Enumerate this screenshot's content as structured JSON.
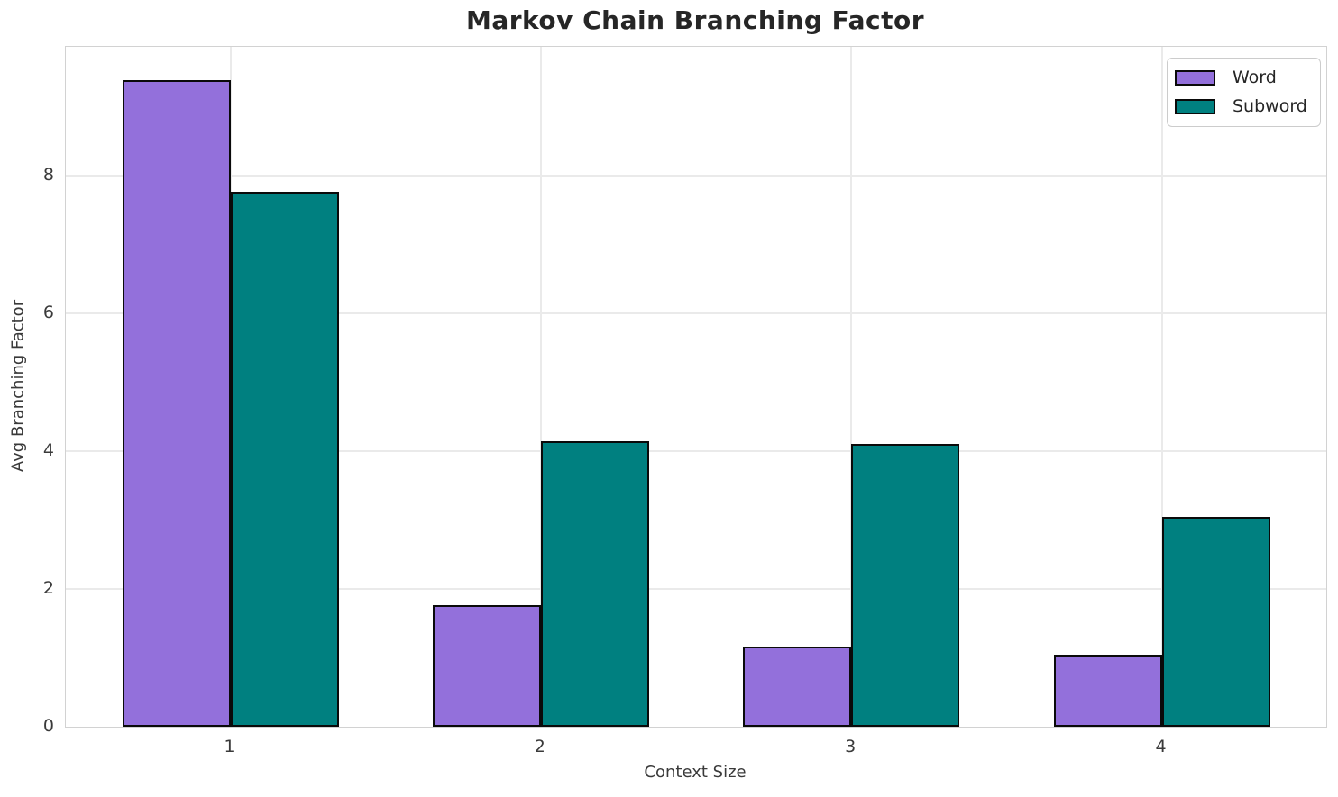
{
  "chart_data": {
    "type": "bar",
    "title": "Markov Chain Branching Factor",
    "xlabel": "Context Size",
    "ylabel": "Avg Branching Factor",
    "categories": [
      "1",
      "2",
      "3",
      "4"
    ],
    "series": [
      {
        "name": "Word",
        "color": "#9370db",
        "values": [
          9.38,
          1.76,
          1.16,
          1.04
        ]
      },
      {
        "name": "Subword",
        "color": "#008080",
        "values": [
          7.77,
          4.14,
          4.11,
          3.05
        ]
      }
    ],
    "ylim": [
      0,
      9.87
    ],
    "yticks": [
      0,
      2,
      4,
      6,
      8
    ],
    "grid": "horizontal and vertical light gray gridlines",
    "legend_position": "upper right",
    "bar_edge_color": "#0a0a0a"
  },
  "colors": {
    "background": "#ffffff",
    "grid": "#eaeaea",
    "spine": "#d2d2d2",
    "title_text": "#262626",
    "tick_text": "#3a3a3a",
    "word_bar": "#9370db",
    "subword_bar": "#008080"
  }
}
